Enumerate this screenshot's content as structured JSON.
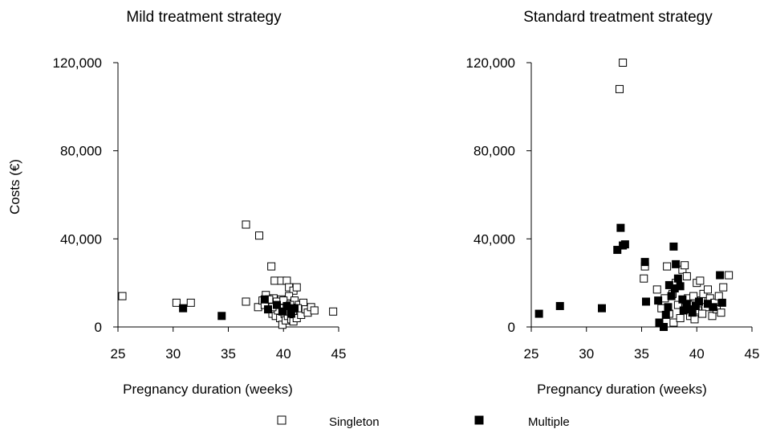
{
  "chart_data": [
    {
      "type": "scatter",
      "title": "Mild treatment strategy",
      "xlabel": "Pregnancy duration (weeks)",
      "ylabel": "Costs (€)",
      "xlim": [
        25,
        45
      ],
      "ylim": [
        0,
        120000
      ],
      "xticks": [
        "25",
        "30",
        "35",
        "40",
        "45"
      ],
      "yticks": [
        "0",
        "40,000",
        "80,000",
        "120,000"
      ],
      "grid": false,
      "series": [
        {
          "name": "Singleton",
          "marker": "open-square",
          "points": [
            [
              25.4,
              14000
            ],
            [
              30.3,
              11000
            ],
            [
              31.6,
              11000
            ],
            [
              36.6,
              46500
            ],
            [
              36.6,
              11500
            ],
            [
              37.8,
              41500
            ],
            [
              38.9,
              27500
            ],
            [
              39.2,
              21000
            ],
            [
              39.8,
              21000
            ],
            [
              40.3,
              21000
            ],
            [
              40.5,
              18000
            ],
            [
              40.9,
              16500
            ],
            [
              41.2,
              18000
            ],
            [
              37.7,
              9000
            ],
            [
              38.1,
              12000
            ],
            [
              38.4,
              14500
            ],
            [
              38.6,
              8000
            ],
            [
              38.8,
              10500
            ],
            [
              39.0,
              6000
            ],
            [
              39.1,
              13000
            ],
            [
              39.3,
              5000
            ],
            [
              39.5,
              7500
            ],
            [
              39.6,
              10000
            ],
            [
              39.7,
              4000
            ],
            [
              39.8,
              12500
            ],
            [
              39.9,
              1000
            ],
            [
              40.0,
              8500
            ],
            [
              40.1,
              6000
            ],
            [
              40.2,
              3000
            ],
            [
              40.3,
              11000
            ],
            [
              40.4,
              5000
            ],
            [
              40.5,
              14000
            ],
            [
              40.6,
              7000
            ],
            [
              40.7,
              3500
            ],
            [
              40.8,
              9500
            ],
            [
              40.9,
              2500
            ],
            [
              41.0,
              12000
            ],
            [
              41.1,
              6500
            ],
            [
              41.2,
              4000
            ],
            [
              41.4,
              10000
            ],
            [
              41.5,
              7500
            ],
            [
              41.6,
              5500
            ],
            [
              41.8,
              11000
            ],
            [
              42.0,
              8000
            ],
            [
              42.2,
              6500
            ],
            [
              42.5,
              9000
            ],
            [
              42.8,
              7500
            ],
            [
              44.5,
              7000
            ],
            [
              38.3,
              10000
            ],
            [
              38.7,
              12500
            ],
            [
              39.0,
              9000
            ],
            [
              39.4,
              11500
            ],
            [
              40.0,
              12000
            ],
            [
              40.6,
              10000
            ],
            [
              41.3,
              8500
            ]
          ]
        },
        {
          "name": "Multiple",
          "marker": "filled-square",
          "points": [
            [
              30.9,
              8500
            ],
            [
              34.4,
              5000
            ],
            [
              38.3,
              12500
            ],
            [
              38.6,
              8000
            ],
            [
              39.4,
              10000
            ],
            [
              39.9,
              7000
            ],
            [
              40.3,
              9500
            ],
            [
              40.7,
              6000
            ],
            [
              41.0,
              8500
            ]
          ]
        }
      ]
    },
    {
      "type": "scatter",
      "title": "Standard treatment strategy",
      "xlabel": "Pregnancy duration (weeks)",
      "ylabel": "",
      "xlim": [
        25,
        45
      ],
      "ylim": [
        0,
        120000
      ],
      "xticks": [
        "25",
        "30",
        "35",
        "40",
        "45"
      ],
      "yticks": [
        "0",
        "40,000",
        "80,000",
        "120,000"
      ],
      "grid": false,
      "series": [
        {
          "name": "Singleton",
          "marker": "open-square",
          "points": [
            [
              33.3,
              120000
            ],
            [
              33.0,
              108000
            ],
            [
              35.2,
              22000
            ],
            [
              35.3,
              27500
            ],
            [
              36.4,
              17000
            ],
            [
              36.8,
              8500
            ],
            [
              37.1,
              13000
            ],
            [
              37.3,
              27500
            ],
            [
              37.5,
              6000
            ],
            [
              37.8,
              15000
            ],
            [
              37.9,
              2000
            ],
            [
              38.1,
              20000
            ],
            [
              38.3,
              10000
            ],
            [
              38.5,
              4000
            ],
            [
              38.7,
              26000
            ],
            [
              38.9,
              28000
            ],
            [
              39.1,
              23000
            ],
            [
              39.2,
              13000
            ],
            [
              39.4,
              5000
            ],
            [
              39.6,
              10000
            ],
            [
              39.8,
              3500
            ],
            [
              40.0,
              20000
            ],
            [
              40.1,
              7500
            ],
            [
              40.3,
              21000
            ],
            [
              40.4,
              12000
            ],
            [
              40.6,
              15000
            ],
            [
              40.8,
              9000
            ],
            [
              41.0,
              17000
            ],
            [
              41.2,
              13000
            ],
            [
              41.4,
              5000
            ],
            [
              41.6,
              11000
            ],
            [
              41.8,
              8000
            ],
            [
              42.0,
              14000
            ],
            [
              42.2,
              6500
            ],
            [
              42.4,
              18000
            ],
            [
              42.9,
              23500
            ],
            [
              39.0,
              9000
            ],
            [
              39.7,
              14000
            ],
            [
              40.5,
              6000
            ]
          ]
        },
        {
          "name": "Multiple",
          "marker": "filled-square",
          "points": [
            [
              25.7,
              6000
            ],
            [
              27.6,
              9500
            ],
            [
              31.4,
              8500
            ],
            [
              32.8,
              35000
            ],
            [
              33.1,
              45000
            ],
            [
              33.3,
              37000
            ],
            [
              33.5,
              37500
            ],
            [
              35.3,
              29500
            ],
            [
              35.4,
              11500
            ],
            [
              36.5,
              12000
            ],
            [
              36.6,
              2000
            ],
            [
              37.0,
              0
            ],
            [
              37.2,
              5500
            ],
            [
              37.4,
              9000
            ],
            [
              37.5,
              19000
            ],
            [
              37.7,
              14000
            ],
            [
              37.9,
              36500
            ],
            [
              38.0,
              17500
            ],
            [
              38.1,
              28500
            ],
            [
              38.3,
              22000
            ],
            [
              38.5,
              18500
            ],
            [
              38.7,
              12500
            ],
            [
              38.8,
              7500
            ],
            [
              39.1,
              10500
            ],
            [
              39.3,
              8000
            ],
            [
              39.6,
              6500
            ],
            [
              39.9,
              9500
            ],
            [
              40.2,
              11500
            ],
            [
              41.0,
              10500
            ],
            [
              41.5,
              9000
            ],
            [
              42.1,
              23500
            ],
            [
              42.3,
              11000
            ]
          ]
        }
      ]
    }
  ],
  "legend": {
    "placement": "bottom-center",
    "items": [
      {
        "label": "Singleton",
        "marker": "open-square"
      },
      {
        "label": "Multiple",
        "marker": "filled-square"
      }
    ]
  }
}
